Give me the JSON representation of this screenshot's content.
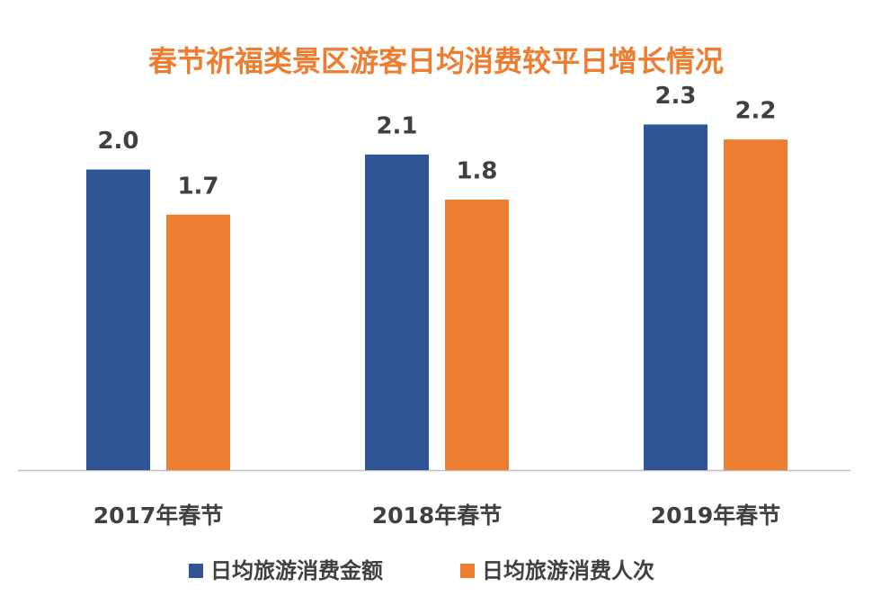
{
  "chart_data": {
    "type": "bar",
    "title": "春节祈福类景区游客日均消费较平日增长情况",
    "categories": [
      "2017年春节",
      "2018年春节",
      "2019年春节"
    ],
    "series": [
      {
        "name": "日均旅游消费金额",
        "color": "#2F5597",
        "values": [
          2.0,
          2.1,
          2.3
        ],
        "value_labels": [
          "2.0",
          "2.1",
          "2.3"
        ]
      },
      {
        "name": "日均旅游消费人次",
        "color": "#ED7D31",
        "values": [
          1.7,
          1.8,
          2.2
        ],
        "value_labels": [
          "1.7",
          "1.8",
          "2.2"
        ]
      }
    ],
    "ylim": [
      0,
      2.5
    ],
    "title_color": "#ED7D31"
  }
}
